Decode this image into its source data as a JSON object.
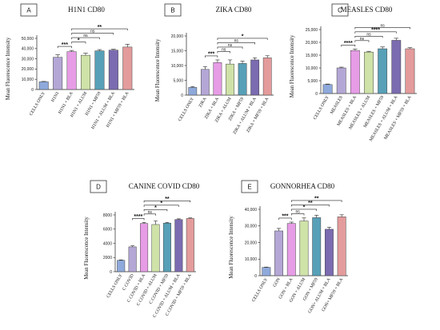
{
  "bar_colors": [
    "#8ea9db",
    "#b4a7d6",
    "#e79ce6",
    "#cfe2a8",
    "#57a0b8",
    "#7b6bb0",
    "#e49b9b"
  ],
  "chart_data": [
    {
      "type": "bar",
      "panel": "A",
      "title": "H1N1 CD80",
      "ylabel": "Mean Fluorescence Intensity",
      "ylim": [
        0,
        50000
      ],
      "yticks": [
        "0",
        "10,000",
        "20,000",
        "30,000",
        "40,000",
        "50,000"
      ],
      "categories": [
        "CELLS ONLY",
        "H1N1",
        "H1N1 + BLA",
        "H1N1 + ALUM",
        "H1N1 + MF59",
        "H1N1 + ALUM + BLA",
        "H1N1 + MF59 + BLA"
      ],
      "values": [
        7500,
        31500,
        37000,
        33500,
        37800,
        38500,
        41500
      ],
      "errors": [
        400,
        2500,
        1200,
        2000,
        1200,
        800,
        2800
      ],
      "comparisons": [
        {
          "from": 2,
          "to": 1,
          "label": "***"
        },
        {
          "from": 2,
          "to": 3,
          "label": "*"
        },
        {
          "from": 2,
          "to": 4,
          "label": "ns"
        },
        {
          "from": 2,
          "to": 5,
          "label": "ns"
        },
        {
          "from": 2,
          "to": 6,
          "label": "**"
        }
      ]
    },
    {
      "type": "bar",
      "panel": "B",
      "title": "ZIKA CD80",
      "ylabel": "Mean Fluorescence Intensity",
      "ylim": [
        0,
        20000
      ],
      "yticks": [
        "0",
        "5,000",
        "10,000",
        "15,000",
        "20,000"
      ],
      "categories": [
        "CELLS ONLY",
        "ZIKA",
        "ZIKA + BLA",
        "ZIKA + ALUM",
        "ZIKA + MF59",
        "ZIKA + ALUM + BLA",
        "ZIKA + MF59 + BLA"
      ],
      "values": [
        2600,
        8700,
        11000,
        10500,
        10700,
        11900,
        12600
      ],
      "errors": [
        300,
        900,
        900,
        1400,
        800,
        700,
        700
      ],
      "comparisons": [
        {
          "from": 2,
          "to": 1,
          "label": "***"
        },
        {
          "from": 2,
          "to": 3,
          "label": "ns"
        },
        {
          "from": 2,
          "to": 4,
          "label": "ns"
        },
        {
          "from": 2,
          "to": 5,
          "label": "ns"
        },
        {
          "from": 2,
          "to": 6,
          "label": "*"
        }
      ]
    },
    {
      "type": "bar",
      "panel": "C",
      "title": "MEASLES CD80",
      "ylabel": "Mean Fluorescence Intensity",
      "ylim": [
        0,
        25000
      ],
      "yticks": [
        "0",
        "5,000",
        "10,000",
        "15,000",
        "20,000",
        "25,000"
      ],
      "categories": [
        "CELLS ONLY",
        "MEASLES",
        "MEASLES + BLA",
        "MEASLES + ALUM",
        "MEASLES + MF59",
        "MEASLES + ALUM + BLA",
        "MEASLES + MF59 + BLA"
      ],
      "values": [
        3500,
        10000,
        16800,
        16200,
        17500,
        20800,
        17500
      ],
      "errors": [
        200,
        300,
        600,
        300,
        700,
        800,
        400
      ],
      "comparisons": [
        {
          "from": 2,
          "to": 1,
          "label": "****"
        },
        {
          "from": 2,
          "to": 3,
          "label": "ns"
        },
        {
          "from": 2,
          "to": 4,
          "label": "ns"
        },
        {
          "from": 2,
          "to": 5,
          "label": "****"
        },
        {
          "from": 2,
          "to": 6,
          "label": "ns"
        }
      ]
    },
    {
      "type": "bar",
      "panel": "D",
      "title": "CANINE COVID CD80",
      "ylabel": "Mean Fluorescence Intensity",
      "ylim": [
        0,
        8000
      ],
      "yticks": [
        "0",
        "2000",
        "4000",
        "6000",
        "8000"
      ],
      "categories": [
        "CELLS ONLY",
        "C COVID",
        "C COVID + BLA",
        "C COVID + ALUM",
        "C COVID + MF59",
        "C COVID + ALUM + BLA",
        "C COVID + MF59 + BLA"
      ],
      "values": [
        1600,
        3500,
        6800,
        6650,
        6850,
        7350,
        7500
      ],
      "errors": [
        60,
        150,
        150,
        500,
        100,
        100,
        80
      ],
      "comparisons": [
        {
          "from": 2,
          "to": 1,
          "label": "****"
        },
        {
          "from": 2,
          "to": 3,
          "label": "ns"
        },
        {
          "from": 2,
          "to": 4,
          "label": "*"
        },
        {
          "from": 2,
          "to": 5,
          "label": "*"
        },
        {
          "from": 2,
          "to": 6,
          "label": "**"
        }
      ]
    },
    {
      "type": "bar",
      "panel": "E",
      "title": "GONNORHEA CD80",
      "ylabel": "Mean Fluorescence Intensity",
      "ylim": [
        0,
        40000
      ],
      "yticks": [
        "0",
        "10,000",
        "20,000",
        "30,000",
        "40,000"
      ],
      "categories": [
        "CELLS ONLY",
        "GON",
        "GON + BLA",
        "GON + ALUM",
        "GON + MF59",
        "GON+ ALUM + BLA",
        "GON+ MF59 + BLA"
      ],
      "values": [
        5000,
        27000,
        31500,
        33000,
        35000,
        28000,
        35500
      ],
      "errors": [
        200,
        1500,
        800,
        1800,
        1500,
        1200,
        1200
      ],
      "comparisons": [
        {
          "from": 2,
          "to": 1,
          "label": "***"
        },
        {
          "from": 2,
          "to": 3,
          "label": "ns"
        },
        {
          "from": 2,
          "to": 4,
          "label": "*"
        },
        {
          "from": 2,
          "to": 5,
          "label": "**"
        },
        {
          "from": 2,
          "to": 6,
          "label": "**"
        }
      ]
    }
  ]
}
